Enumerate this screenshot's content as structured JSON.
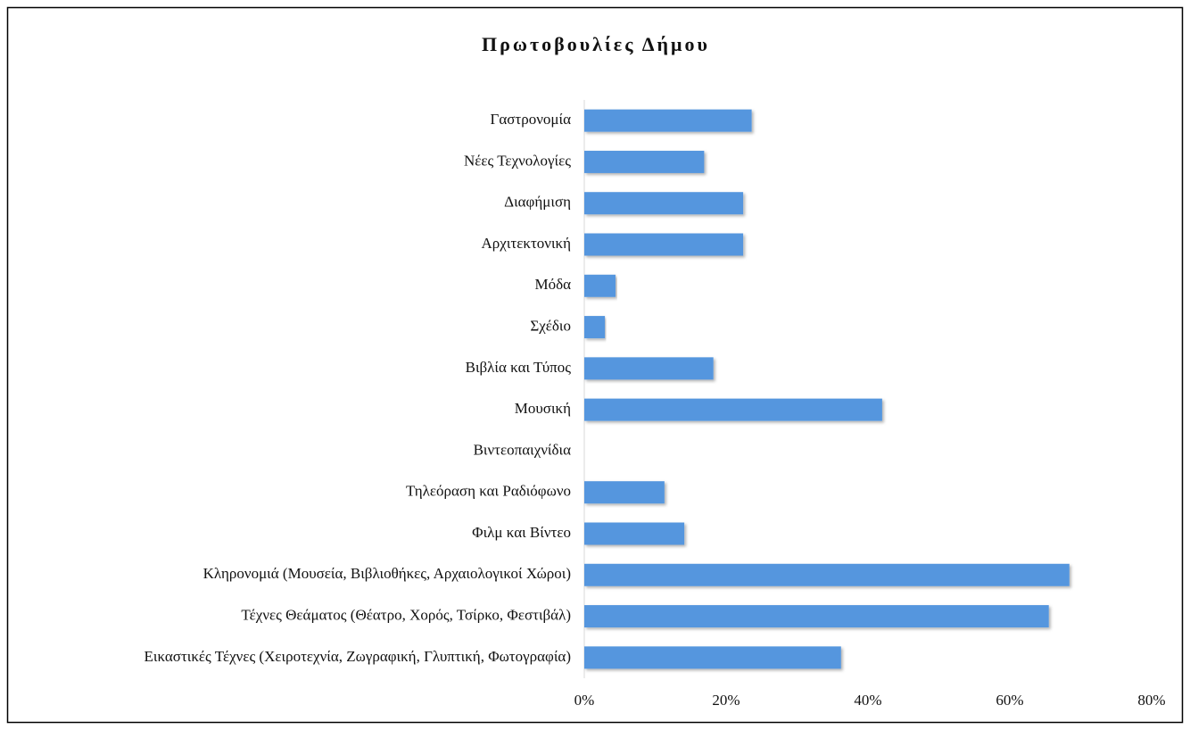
{
  "chart_data": {
    "type": "bar",
    "orientation": "horizontal",
    "title": "Πρωτοβουλίες Δήμου",
    "categories": [
      "Γαστρονομία",
      "Νέες Τεχνολογίες",
      "Διαφήμιση",
      "Αρχιτεκτονική",
      "Μόδα",
      "Σχέδιο",
      "Βιβλία και Τύπος",
      "Μουσική",
      "Βιντεοπαιχνίδια",
      "Τηλεόραση και Ραδιόφωνο",
      "Φιλμ και Βίντεο",
      "Κληρονομιά (Μουσεία, Βιβλιοθήκες, Αρχαιολογικοί Χώροι)",
      "Τέχνες Θεάματος (Θέατρο, Χορός, Τσίρκο, Φεστιβάλ)",
      "Εικαστικές Τέχνες (Χειροτεχνία, Ζωγραφική, Γλυπτική, Φωτογραφία)"
    ],
    "values": [
      23.6,
      16.9,
      22.4,
      22.4,
      4.4,
      2.9,
      18.2,
      42.0,
      0,
      11.3,
      14.1,
      68.4,
      65.5,
      36.2
    ],
    "color": "#5596de",
    "xlim": [
      0,
      80
    ],
    "xticks": [
      {
        "value": 0,
        "label": "0%"
      },
      {
        "value": 20,
        "label": "20%"
      },
      {
        "value": 40,
        "label": "40%"
      },
      {
        "value": 60,
        "label": "60%"
      },
      {
        "value": 80,
        "label": "80%"
      }
    ],
    "grid": false
  }
}
